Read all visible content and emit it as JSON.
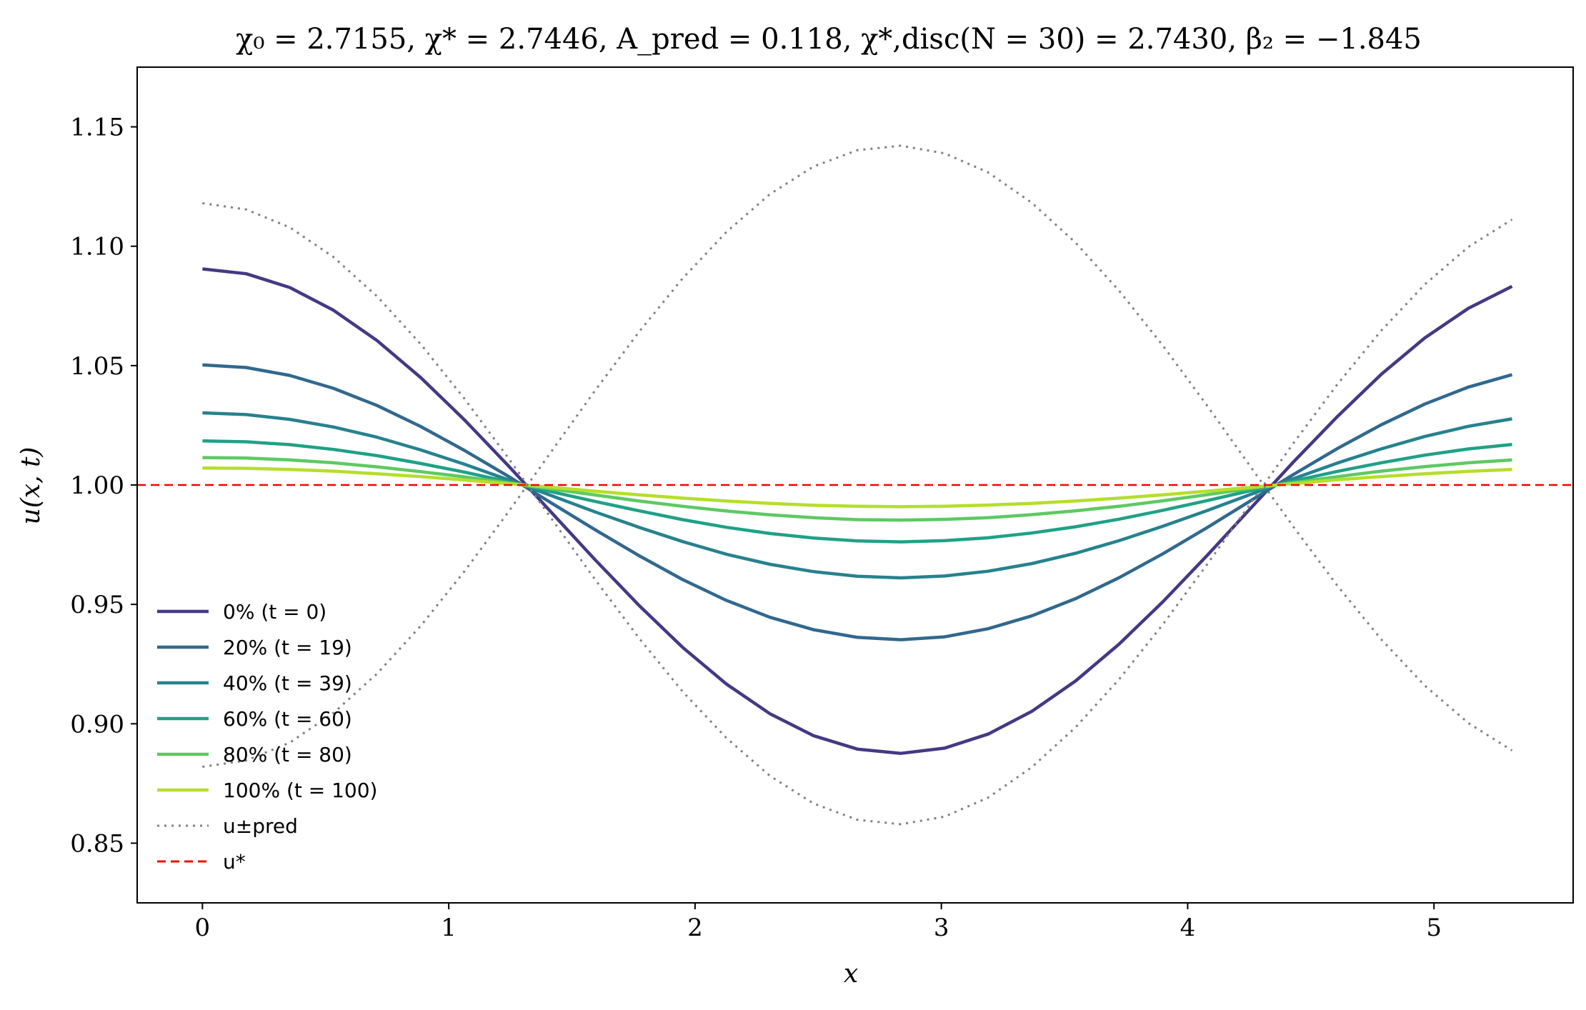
{
  "chart_data": {
    "type": "line",
    "title": "χ₀ = 2.7155,  χ* = 2.7446,  A_pred = 0.118,  χ*,disc(N = 30) = 2.7430,  β₂ = −1.845",
    "xlabel": "x",
    "ylabel": "u(x, t)",
    "xlim": [
      -0.265,
      5.565
    ],
    "ylim": [
      0.825,
      1.175
    ],
    "xticks": [
      0,
      1,
      2,
      3,
      4,
      5
    ],
    "yticks": [
      0.85,
      0.9,
      0.95,
      1.0,
      1.05,
      1.1,
      1.15
    ],
    "ytick_labels": [
      "0.85",
      "0.90",
      "0.95",
      "1.00",
      "1.05",
      "1.10",
      "1.15"
    ],
    "grid": false,
    "legend_position": "lower-left",
    "x": [
      0,
      0.1772,
      0.3545,
      0.5317,
      0.7089,
      0.8862,
      1.0634,
      1.2406,
      1.4179,
      1.5951,
      1.7723,
      1.9496,
      2.1268,
      2.304,
      2.4813,
      2.6585,
      2.8357,
      3.013,
      3.1902,
      3.3674,
      3.5447,
      3.7219,
      3.8991,
      4.0764,
      4.2536,
      4.4308,
      4.6081,
      4.7853,
      4.9625,
      5.1398,
      5.317
    ],
    "series": [
      {
        "name": "0% (t = 0)",
        "color": "#443983",
        "style": "solid",
        "values": [
          1.0905,
          1.0885,
          1.0827,
          1.0732,
          1.0605,
          1.045,
          1.0273,
          1.0082,
          0.9884,
          0.9686,
          0.9496,
          0.932,
          0.9167,
          0.9042,
          0.895,
          0.8894,
          0.8876,
          0.8898,
          0.8957,
          0.9052,
          0.9179,
          0.9334,
          0.9511,
          0.9702,
          0.99,
          1.0098,
          1.0287,
          1.0463,
          1.0616,
          1.074,
          1.0832
        ]
      },
      {
        "name": "20% (t = 19)",
        "color": "#31688e",
        "style": "solid",
        "values": [
          1.0503,
          1.0492,
          1.0459,
          1.0405,
          1.0333,
          1.0245,
          1.0145,
          1.0037,
          0.9924,
          0.9812,
          0.9704,
          0.9604,
          0.9517,
          0.9446,
          0.9394,
          0.9362,
          0.9352,
          0.9364,
          0.9398,
          0.9452,
          0.9524,
          0.9612,
          0.9712,
          0.982,
          0.9933,
          1.0045,
          1.0153,
          1.0252,
          1.0339,
          1.041,
          1.0462
        ]
      },
      {
        "name": "40% (t = 39)",
        "color": "#26828e",
        "style": "solid",
        "values": [
          1.0302,
          1.0295,
          1.0275,
          1.0243,
          1.02,
          1.0147,
          1.0087,
          1.0022,
          0.9955,
          0.9887,
          0.9823,
          0.9763,
          0.971,
          0.9668,
          0.9637,
          0.9618,
          0.9611,
          0.9619,
          0.9639,
          0.9671,
          0.9714,
          0.9767,
          0.9827,
          0.9892,
          0.996,
          1.0027,
          1.0092,
          1.0151,
          1.0203,
          1.0246,
          1.0277
        ]
      },
      {
        "name": "60% (t = 60)",
        "color": "#1fa187",
        "style": "solid",
        "values": [
          1.0185,
          1.0181,
          1.0169,
          1.0149,
          1.0123,
          1.009,
          1.0054,
          1.0014,
          0.9972,
          0.9931,
          0.9892,
          0.9855,
          0.9823,
          0.9797,
          0.9778,
          0.9766,
          0.9762,
          0.9767,
          0.9779,
          0.9799,
          0.9825,
          0.9857,
          0.9894,
          0.9934,
          0.9976,
          1.0017,
          1.0057,
          1.0093,
          1.0125,
          1.0151,
          1.017
        ]
      },
      {
        "name": "80% (t = 80)",
        "color": "#5ec962",
        "style": "solid",
        "values": [
          1.0115,
          1.0113,
          1.0105,
          1.0093,
          1.0076,
          1.0056,
          1.0034,
          1.0009,
          0.9983,
          0.9958,
          0.9933,
          0.9911,
          0.9891,
          0.9875,
          0.9863,
          0.9855,
          0.9853,
          0.9856,
          0.9863,
          0.9876,
          0.9892,
          0.9911,
          0.9934,
          0.9959,
          0.9985,
          1.001,
          1.0035,
          1.0058,
          1.0077,
          1.0093,
          1.0105
        ]
      },
      {
        "name": "100% (t = 100)",
        "color": "#b5de2b",
        "style": "solid",
        "values": [
          1.0071,
          1.007,
          1.0065,
          1.0058,
          1.0047,
          1.0035,
          1.0021,
          1.0006,
          0.999,
          0.9974,
          0.9959,
          0.9945,
          0.9933,
          0.9923,
          0.9915,
          0.9911,
          0.9909,
          0.9911,
          0.9916,
          0.9923,
          0.9933,
          0.9945,
          0.9959,
          0.9974,
          0.999,
          1.0006,
          1.0022,
          1.0035,
          1.0047,
          1.0057,
          1.0065
        ]
      },
      {
        "name": "u±pred (upper)",
        "color": "#808080",
        "style": "dotted",
        "values": [
          1.118,
          1.1154,
          1.1079,
          1.0955,
          1.079,
          1.059,
          1.0362,
          1.0115,
          0.9858,
          0.9603,
          0.9359,
          0.9135,
          0.8941,
          0.8782,
          0.8666,
          0.8598,
          0.8579,
          0.8611,
          0.8691,
          0.8818,
          0.8985,
          0.9187,
          0.9416,
          0.9664,
          0.9921,
          1.0177,
          1.0422,
          1.0646,
          1.084,
          1.0997,
          1.1112
        ]
      },
      {
        "name": "u±pred (lower)",
        "color": "#808080",
        "style": "dotted",
        "values": [
          0.882,
          0.8846,
          0.8921,
          0.9045,
          0.921,
          0.941,
          0.9638,
          0.9885,
          1.0142,
          1.0397,
          1.0641,
          1.0865,
          1.1059,
          1.1218,
          1.1334,
          1.1402,
          1.1421,
          1.1389,
          1.1309,
          1.1182,
          1.1015,
          1.0813,
          1.0584,
          1.0336,
          1.0079,
          0.9823,
          0.9578,
          0.9354,
          0.916,
          0.9003,
          0.8888
        ]
      },
      {
        "name": "u*",
        "color": "#ff0000",
        "style": "dashed",
        "constant": 1.0
      }
    ],
    "legend": [
      {
        "label": "0% (t = 0)",
        "color": "#443983",
        "style": "solid"
      },
      {
        "label": "20% (t = 19)",
        "color": "#31688e",
        "style": "solid"
      },
      {
        "label": "40% (t = 39)",
        "color": "#26828e",
        "style": "solid"
      },
      {
        "label": "60% (t = 60)",
        "color": "#1fa187",
        "style": "solid"
      },
      {
        "label": "80% (t = 80)",
        "color": "#5ec962",
        "style": "solid"
      },
      {
        "label": "100% (t = 100)",
        "color": "#b5de2b",
        "style": "solid"
      },
      {
        "label": "u±pred",
        "color": "#808080",
        "style": "dotted"
      },
      {
        "label": "u*",
        "color": "#ff0000",
        "style": "dashed"
      }
    ]
  }
}
